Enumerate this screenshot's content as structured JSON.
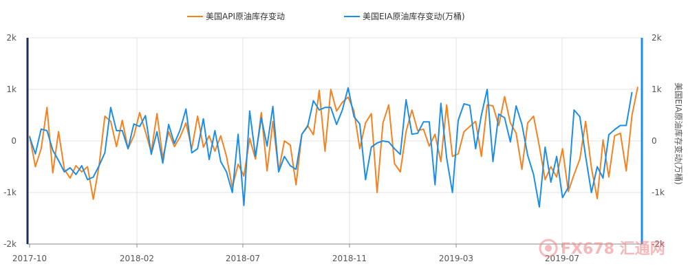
{
  "chart_data": {
    "type": "line",
    "x_tick_labels": [
      "2017-10",
      "2018-02",
      "2018-07",
      "2018-11",
      "2019-03",
      "2019-07"
    ],
    "y_ticks_left": [
      "2k",
      "1k",
      "0",
      "-1k",
      "-2k"
    ],
    "y_ticks_right": [
      "2k",
      "1k",
      "0",
      "-1k",
      "-2k"
    ],
    "ylim": [
      -2000,
      2000
    ],
    "right_axis_title": "美国EIA原油库存变动(万桶)",
    "grid": true,
    "legend_position": "top-center",
    "series": [
      {
        "name": "美国API原油库存变动",
        "color": "#f5821f",
        "values": [
          100,
          -500,
          -150,
          650,
          -620,
          180,
          -550,
          -720,
          -480,
          -600,
          -500,
          -1130,
          -480,
          480,
          380,
          -110,
          400,
          -150,
          100,
          550,
          180,
          -220,
          530,
          -330,
          180,
          -110,
          80,
          350,
          -150,
          480,
          -120,
          100,
          -200,
          100,
          -300,
          -900,
          -450,
          -680,
          50,
          -350,
          550,
          -580,
          380,
          -580,
          0,
          -80,
          -850,
          130,
          300,
          120,
          980,
          -200,
          1000,
          580,
          750,
          850,
          580,
          -150,
          350,
          530,
          -1000,
          350,
          700,
          -440,
          -600,
          180,
          600,
          200,
          230,
          -100,
          130,
          -400,
          700,
          -300,
          -250,
          180,
          280,
          380,
          -300,
          700,
          680,
          300,
          860,
          350,
          150,
          -550,
          350,
          480,
          -100,
          -750,
          -500,
          -700,
          -150,
          -980,
          -650,
          -350,
          380,
          -520,
          -1120,
          20,
          -700,
          100,
          150,
          -580,
          500,
          1050
        ]
      },
      {
        "name": "美国EIA原油库存变动(万桶)",
        "color": "#1a8ee6",
        "values": [
          80,
          -250,
          230,
          200,
          -180,
          -380,
          -600,
          -520,
          -650,
          -480,
          -750,
          -700,
          -480,
          -230,
          650,
          200,
          200,
          -150,
          330,
          280,
          490,
          -260,
          180,
          -430,
          320,
          -50,
          220,
          620,
          -230,
          -150,
          430,
          -360,
          200,
          -400,
          -600,
          -1000,
          130,
          -1250,
          580,
          -300,
          450,
          -100,
          670,
          -600,
          -300,
          -480,
          -550,
          130,
          280,
          780,
          600,
          650,
          650,
          320,
          600,
          1030,
          470,
          330,
          -750,
          -120,
          -40,
          0,
          -20,
          -150,
          -260,
          800,
          130,
          150,
          370,
          370,
          -850,
          730,
          -330,
          -1000,
          400,
          720,
          690,
          -150,
          500,
          1000,
          -400,
          520,
          450,
          -20,
          680,
          320,
          -280,
          -650,
          -1280,
          -120,
          -800,
          -300,
          -1100,
          -900,
          600,
          470,
          -300,
          -1000,
          -500,
          -720,
          120,
          220,
          300,
          300,
          950
        ]
      }
    ]
  },
  "watermark": {
    "text": "FX678 汇通网"
  }
}
